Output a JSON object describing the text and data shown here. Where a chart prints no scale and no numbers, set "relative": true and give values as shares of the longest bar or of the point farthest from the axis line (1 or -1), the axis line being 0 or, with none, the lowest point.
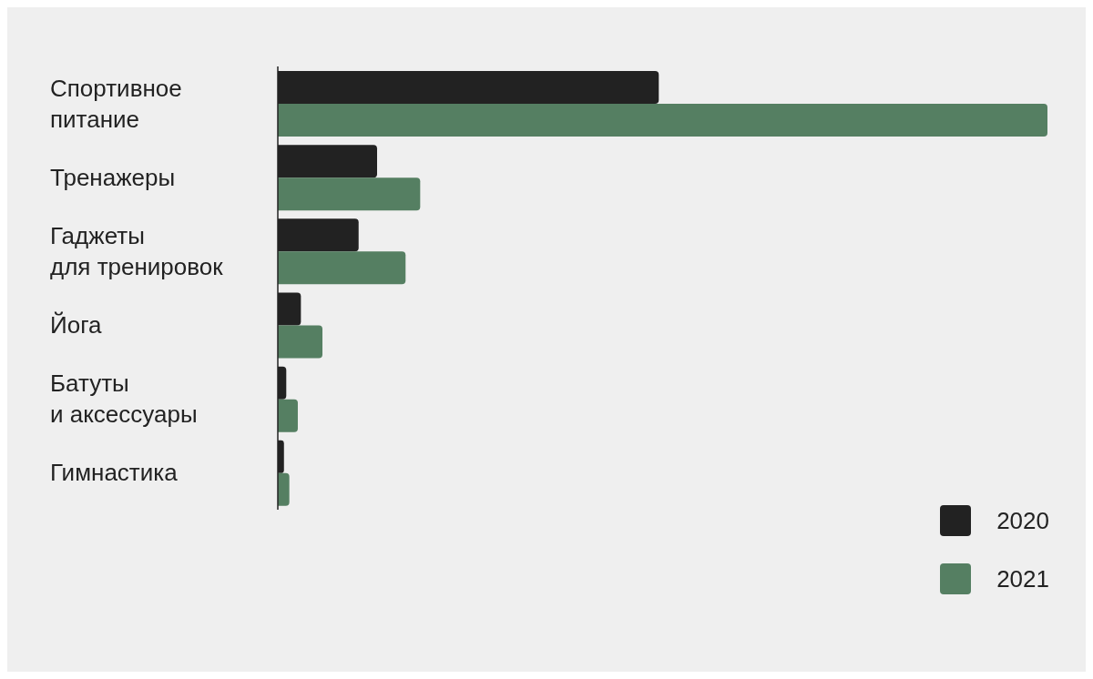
{
  "chart_data": {
    "type": "bar",
    "orientation": "horizontal",
    "relative": true,
    "categories": [
      "Спортивное\nпитание",
      "Тренажеры",
      "Гаджеты\nдля тренировок",
      "Йога",
      "Батуты\nи аксессуары",
      "Гимнастика"
    ],
    "series": [
      {
        "name": "2020",
        "color": "#222222",
        "values": [
          0.495,
          0.129,
          0.105,
          0.03,
          0.011,
          0.008
        ]
      },
      {
        "name": "2021",
        "color": "#557f62",
        "values": [
          1,
          0.185,
          0.166,
          0.058,
          0.026,
          0.015
        ]
      }
    ],
    "legend": "bottom right",
    "grid": false
  }
}
